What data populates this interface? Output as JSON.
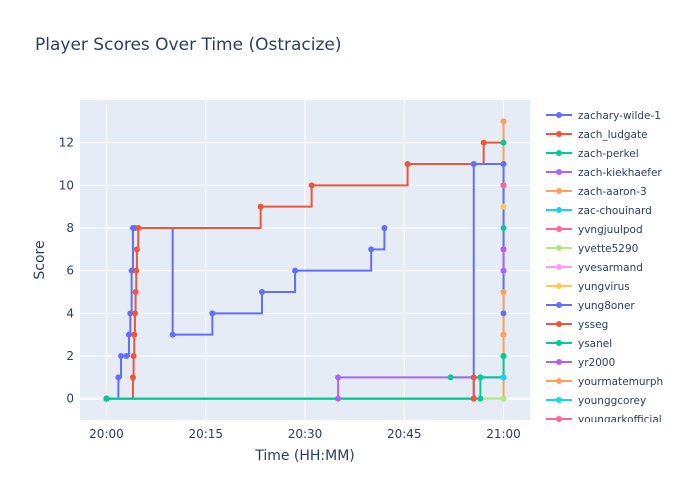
{
  "chart_data": {
    "type": "line",
    "line_shape": "step",
    "title": "Player Scores Over Time (Ostracize)",
    "xlabel": "Time (HH:MM)",
    "ylabel": "Score",
    "x_ticks": [
      "20:00",
      "20:15",
      "20:30",
      "20:45",
      "21:00"
    ],
    "y_ticks": [
      0,
      2,
      4,
      6,
      8,
      10,
      12
    ],
    "xlim": [
      "19:56",
      "21:04"
    ],
    "ylim": [
      -1,
      14
    ],
    "grid": true,
    "legend_position": "right",
    "series": [
      {
        "name": "zachary-wilde-1",
        "color": "#636efa",
        "points": [
          [
            "20:00",
            0
          ],
          [
            "20:01.8",
            1
          ],
          [
            "20:02.2",
            2
          ],
          [
            "20:03",
            2
          ],
          [
            "20:03.4",
            3
          ],
          [
            "20:03.6",
            4
          ],
          [
            "20:03.8",
            6
          ],
          [
            "20:04",
            8
          ],
          [
            "20:04.3",
            8
          ],
          [
            "20:10",
            3
          ],
          [
            "20:16",
            4
          ],
          [
            "20:23.5",
            5
          ],
          [
            "20:28.5",
            6
          ],
          [
            "20:40",
            7
          ],
          [
            "20:42",
            8
          ]
        ]
      },
      {
        "name": "zach_ludgate",
        "color": "#ef553b",
        "points": [
          [
            "20:00",
            0
          ],
          [
            "20:04",
            1
          ],
          [
            "20:04.1",
            2
          ],
          [
            "20:04.2",
            3
          ],
          [
            "20:04.3",
            4
          ],
          [
            "20:04.4",
            5
          ],
          [
            "20:04.5",
            6
          ],
          [
            "20:04.6",
            7
          ],
          [
            "20:04.8",
            8
          ],
          [
            "20:23.3",
            9
          ],
          [
            "20:31",
            10
          ],
          [
            "20:45.5",
            11
          ],
          [
            "20:57",
            12
          ],
          [
            "21:00",
            13
          ]
        ]
      },
      {
        "name": "zach-perkel",
        "color": "#00cc96",
        "points": [
          [
            "20:52",
            1
          ],
          [
            "20:56.5",
            1
          ],
          [
            "21:00",
            2
          ],
          [
            "21:00",
            8
          ],
          [
            "21:00",
            12
          ]
        ]
      },
      {
        "name": "zach-kiekhaefer",
        "color": "#ab63fa",
        "points": [
          [
            "20:00",
            0
          ],
          [
            "20:35",
            0
          ],
          [
            "20:35",
            1
          ],
          [
            "21:00",
            10
          ]
        ]
      },
      {
        "name": "zach-aaron-3",
        "color": "#ffa15a",
        "points": [
          [
            "20:00",
            0
          ],
          [
            "21:00",
            0
          ],
          [
            "21:00",
            3
          ],
          [
            "21:00",
            5
          ],
          [
            "21:00",
            9
          ],
          [
            "21:00",
            11
          ],
          [
            "21:00",
            13
          ]
        ]
      },
      {
        "name": "zac-chouinard",
        "color": "#19d3f3",
        "points": [
          [
            "21:00",
            1
          ]
        ]
      },
      {
        "name": "yvngjuulpod",
        "color": "#ff6692",
        "points": [
          [
            "21:00",
            7
          ]
        ]
      },
      {
        "name": "yvette5290",
        "color": "#b6e880",
        "points": [
          [
            "20:00",
            0
          ],
          [
            "21:00",
            0
          ]
        ]
      },
      {
        "name": "yvesarmand",
        "color": "#ff97ff",
        "points": [
          [
            "21:00",
            6
          ]
        ]
      },
      {
        "name": "yungvirus",
        "color": "#fecb52",
        "points": [
          [
            "21:00",
            9
          ]
        ]
      },
      {
        "name": "yung8oner",
        "color": "#636efa",
        "points": [
          [
            "20:00",
            0
          ],
          [
            "20:55.5",
            0
          ],
          [
            "20:55.5",
            11
          ],
          [
            "21:00",
            11
          ],
          [
            "21:00",
            4
          ]
        ]
      },
      {
        "name": "ysseg",
        "color": "#ef553b",
        "points": [
          [
            "20:00",
            0
          ],
          [
            "20:55.5",
            0
          ],
          [
            "20:55.5",
            1
          ]
        ]
      },
      {
        "name": "ysanel",
        "color": "#00cc96",
        "points": [
          [
            "20:00",
            0
          ],
          [
            "20:56.5",
            0
          ],
          [
            "20:56.5",
            1
          ],
          [
            "21:00",
            1
          ],
          [
            "21:00",
            2
          ]
        ]
      },
      {
        "name": "yr2000",
        "color": "#ab63fa",
        "points": [
          [
            "21:00",
            6
          ],
          [
            "21:00",
            7
          ]
        ]
      },
      {
        "name": "yourmatemurph",
        "color": "#ffa15a",
        "points": [
          [
            "21:00",
            3
          ],
          [
            "21:00",
            5
          ]
        ]
      },
      {
        "name": "younggcorey",
        "color": "#19d3f3",
        "points": [
          [
            "21:00",
            1
          ]
        ]
      },
      {
        "name": "youngarkofficial",
        "color": "#ff6692",
        "points": [
          [
            "21:00",
            10
          ]
        ]
      }
    ]
  }
}
